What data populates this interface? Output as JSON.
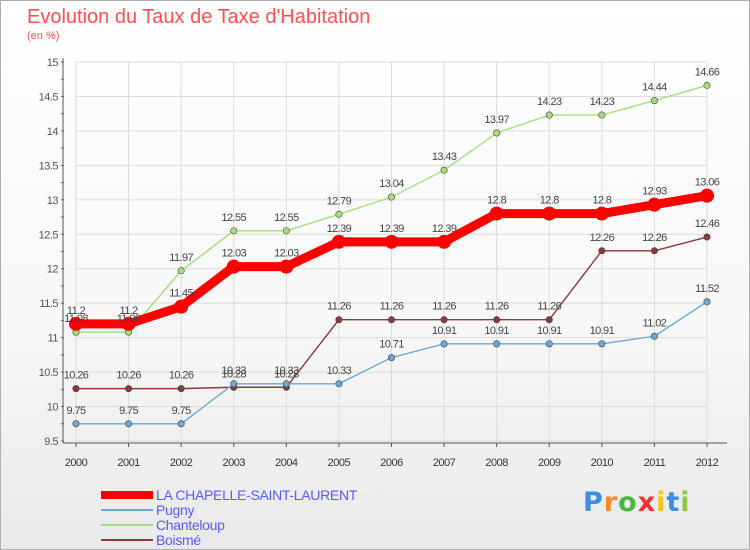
{
  "header": {
    "title": "Evolution du Taux de Taxe d'Habitation",
    "subtitle": "(en %)"
  },
  "logo": {
    "text": "Proxiti",
    "colors": [
      "#3a8ee6",
      "#f28c28",
      "#49b648",
      "#e8352e",
      "#f5c518",
      "#3a8ee6",
      "#8fc63f"
    ]
  },
  "chart_data": {
    "type": "line",
    "x": [
      "2000",
      "2001",
      "2002",
      "2003",
      "2004",
      "2005",
      "2006",
      "2007",
      "2008",
      "2009",
      "2010",
      "2011",
      "2012"
    ],
    "ylim": [
      9.5,
      15
    ],
    "yticks": [
      "9.5",
      "10",
      "10.5",
      "11",
      "11.5",
      "12",
      "12.5",
      "13",
      "13.5",
      "14",
      "14.5",
      "15"
    ],
    "grid": true,
    "legend_position": "bottom-left",
    "series": [
      {
        "name": "LA CHAPELLE-SAINT-LAURENT",
        "color": "#ff0000",
        "values": [
          11.2,
          11.2,
          11.45,
          12.03,
          12.03,
          12.39,
          12.39,
          12.39,
          12.8,
          12.8,
          12.8,
          12.93,
          13.06
        ],
        "labels": [
          "11.2",
          "11.2",
          "11.45",
          "12.03",
          "12.03",
          "12.39",
          "12.39",
          "12.39",
          "12.8",
          "12.8",
          "12.8",
          "12.93",
          "13.06"
        ]
      },
      {
        "name": "Pugny",
        "color": "#6aa8d8",
        "values": [
          9.75,
          9.75,
          9.75,
          10.33,
          10.33,
          10.33,
          10.71,
          10.91,
          10.91,
          10.91,
          10.91,
          11.02,
          11.52
        ],
        "labels": [
          "9.75",
          "9.75",
          "9.75",
          "10.33",
          "10.33",
          "10.33",
          "10.71",
          "10.91",
          "10.91",
          "10.91",
          "10.91",
          "11.02",
          "11.52"
        ]
      },
      {
        "name": "Chanteloup",
        "color": "#a2e07a",
        "values": [
          11.08,
          11.08,
          11.97,
          12.55,
          12.55,
          12.79,
          13.04,
          13.43,
          13.97,
          14.23,
          14.23,
          14.44,
          14.66
        ],
        "labels": [
          "11.08",
          "11.08",
          "11.97",
          "12.55",
          "12.55",
          "12.79",
          "13.04",
          "13.43",
          "13.97",
          "14.23",
          "14.23",
          "14.44",
          "14.66"
        ]
      },
      {
        "name": "Boismé",
        "color": "#8b3a3a",
        "values": [
          10.26,
          10.26,
          10.26,
          10.28,
          10.28,
          11.26,
          11.26,
          11.26,
          11.26,
          11.26,
          12.26,
          12.26,
          12.46
        ],
        "labels": [
          "10.26",
          "10.26",
          "10.26",
          "10.28",
          "10.28",
          "11.26",
          "11.26",
          "11.26",
          "11.26",
          "11.26",
          "12.26",
          "12.26",
          "12.46"
        ]
      }
    ]
  }
}
